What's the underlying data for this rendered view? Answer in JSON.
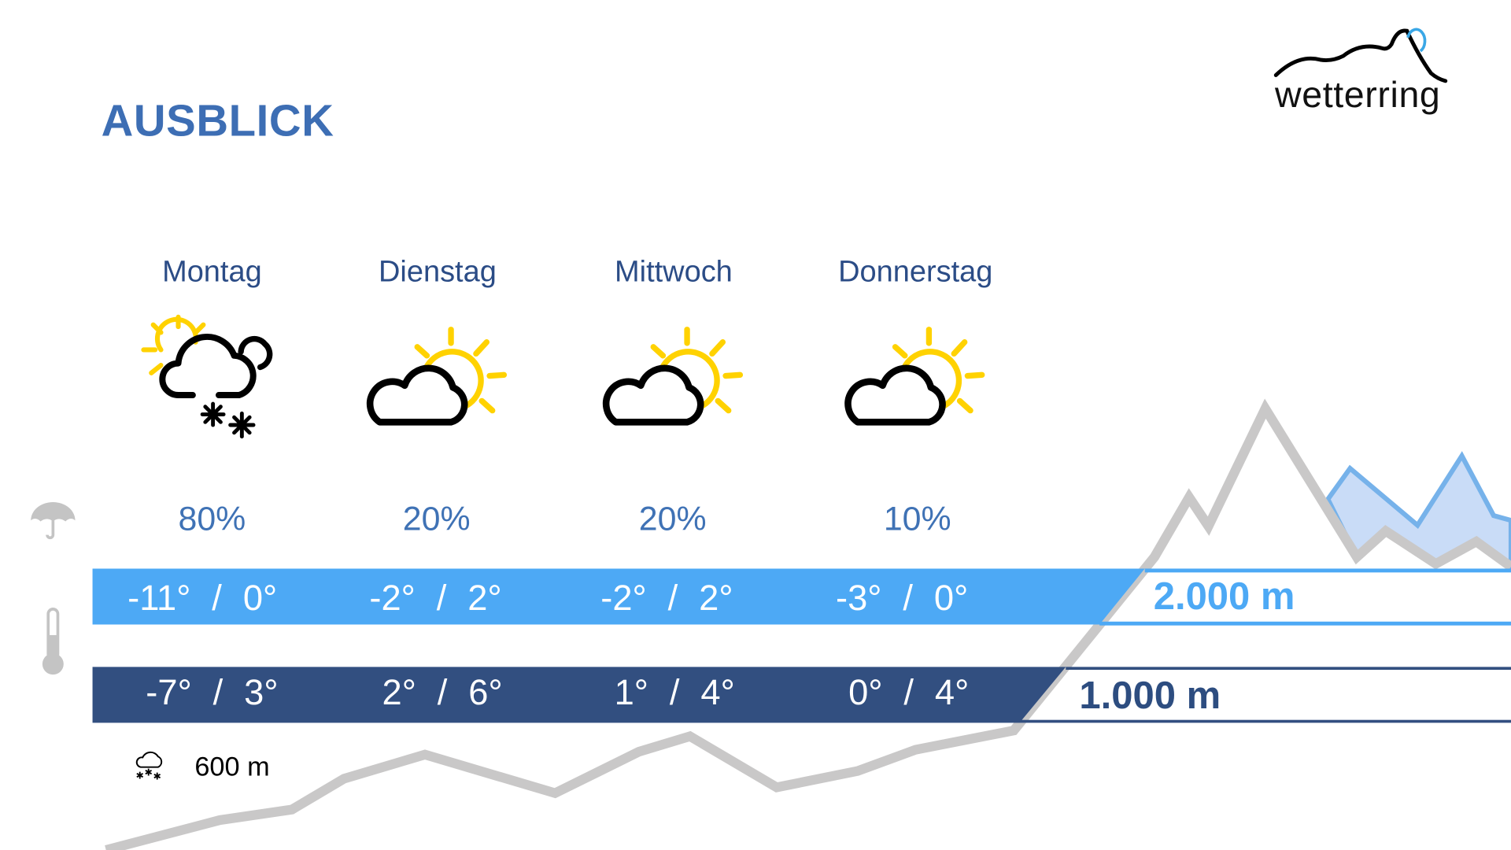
{
  "header": {
    "title": "AUSBLICK"
  },
  "logo": {
    "text": "wetterring"
  },
  "colors": {
    "title": "#3d6eb4",
    "bar_2000": "#4da9f5",
    "bar_1000": "#324f80",
    "mountain": "#c9c8c8",
    "sun": "#ffd200",
    "snow_area": "#c9dcf7"
  },
  "days": [
    {
      "name": "Montag",
      "icon": "sun-cloud-snow-icon",
      "precip": "80%",
      "t2000_min": "-11°",
      "t2000_max": "0°",
      "t1000_min": "-7°",
      "t1000_max": "3°"
    },
    {
      "name": "Dienstag",
      "icon": "partly-cloudy-icon",
      "precip": "20%",
      "t2000_min": "-2°",
      "t2000_max": "2°",
      "t1000_min": "2°",
      "t1000_max": "6°"
    },
    {
      "name": "Mittwoch",
      "icon": "partly-cloudy-icon",
      "precip": "20%",
      "t2000_min": "-2°",
      "t2000_max": "2°",
      "t1000_min": "1°",
      "t1000_max": "4°"
    },
    {
      "name": "Donnerstag",
      "icon": "partly-cloudy-icon",
      "precip": "10%",
      "t2000_min": "-3°",
      "t2000_max": "0°",
      "t1000_min": "0°",
      "t1000_max": "4°"
    }
  ],
  "separator": "/",
  "altitudes": {
    "high": "2.000 m",
    "low": "1.000 m"
  },
  "snowline": {
    "icon": "snow-cloud-icon",
    "value": "600 m"
  },
  "row_icons": {
    "precip": "umbrella-icon",
    "temp": "thermometer-icon"
  }
}
